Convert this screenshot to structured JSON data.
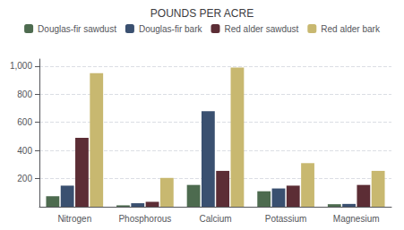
{
  "chart_data": {
    "type": "bar",
    "title": "POUNDS PER ACRE",
    "categories": [
      "Nitrogen",
      "Phosphorous",
      "Calcium",
      "Potassium",
      "Magnesium"
    ],
    "series": [
      {
        "name": "Douglas-fir sawdust",
        "color": "#4d6b4f",
        "values": [
          75,
          10,
          155,
          110,
          18
        ]
      },
      {
        "name": "Douglas-fir bark",
        "color": "#3a5070",
        "values": [
          150,
          25,
          680,
          130,
          20
        ]
      },
      {
        "name": "Red alder sawdust",
        "color": "#5c2d35",
        "values": [
          490,
          35,
          255,
          150,
          155
        ]
      },
      {
        "name": "Red alder bark",
        "color": "#c8b870",
        "values": [
          950,
          205,
          990,
          310,
          255
        ]
      }
    ],
    "ylim": [
      0,
      1050
    ],
    "yticks": [
      200,
      400,
      600,
      800,
      {
        "value": 1000,
        "label": "1,000"
      }
    ],
    "grid": true,
    "legend": "top"
  }
}
